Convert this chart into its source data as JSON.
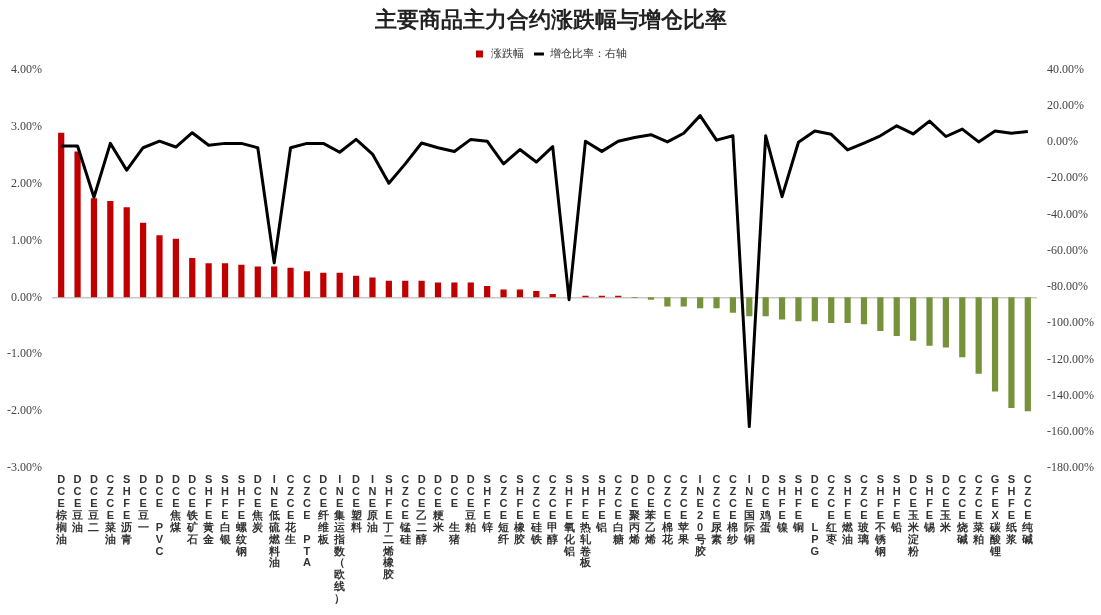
{
  "chart_data": {
    "type": "bar",
    "title": "主要商品主力合约涨跌幅与增仓比率",
    "categories": [
      "DCE棕榈油",
      "DCE豆油",
      "DCE豆二",
      "CZCE菜油",
      "SHFE沥青",
      "DCE豆一",
      "DCE PVC",
      "DCE焦煤",
      "DCE铁矿石",
      "SHFE黄金",
      "SHFE白银",
      "SHFE螺纹钢",
      "DCE焦炭",
      "INE低硫燃料油",
      "CZCE花生",
      "CZCE PTA",
      "DCE纤维板",
      "INE集运指数（欧线）",
      "DCE塑料",
      "INE原油",
      "SHFE丁二烯橡胶",
      "CZCE锰硅",
      "DCE乙二醇",
      "DCE粳米",
      "DCE 生猪",
      "DCE豆粕",
      "SHFE锌",
      "CZCE短纤",
      "SHFE橡胶",
      "CZCE硅铁",
      "CZCE甲醇",
      "SHFE氧化铝",
      "SHFE热轧卷板",
      "SHFE铝",
      "CZCE白糖",
      "DCE聚丙烯",
      "DCE苯乙烯",
      "CZCE棉花",
      "CZCE苹果",
      "INE20号胶",
      "CZCE尿素",
      "CZCE棉纱",
      "INE国际铜",
      "DCE鸡蛋",
      "SHFE镍",
      "SHFE铜",
      "DCE LPG",
      "CZCE红枣",
      "SHFE燃油",
      "CZCE玻璃",
      "SHFE不锈钢",
      "SHFE铅",
      "DCE玉米淀粉",
      "SHFE锡",
      "DCE玉米",
      "CZCE烧碱",
      "CZCE菜粕",
      "GFEX碳酸锂",
      "SHFE纸浆",
      "CZCE纯碱"
    ],
    "series": [
      {
        "name": "涨跌幅",
        "colors": [
          "#c00000",
          "#c00000",
          "#c00000",
          "#c00000",
          "#c00000",
          "#c00000",
          "#c00000",
          "#c00000",
          "#c00000",
          "#c00000",
          "#c00000",
          "#c00000",
          "#c00000",
          "#c00000",
          "#c00000",
          "#c00000",
          "#c00000",
          "#c00000",
          "#c00000",
          "#c00000",
          "#c00000",
          "#c00000",
          "#c00000",
          "#c00000",
          "#c00000",
          "#c00000",
          "#c00000",
          "#c00000",
          "#c00000",
          "#c00000",
          "#c00000",
          "#c00000",
          "#c00000",
          "#c00000",
          "#c00000",
          "#76933c",
          "#76933c",
          "#76933c",
          "#76933c",
          "#76933c",
          "#76933c",
          "#76933c",
          "#76933c",
          "#76933c",
          "#76933c",
          "#76933c",
          "#76933c",
          "#76933c",
          "#76933c",
          "#76933c",
          "#76933c",
          "#76933c",
          "#76933c",
          "#76933c",
          "#76933c",
          "#76933c",
          "#76933c",
          "#76933c",
          "#76933c",
          "#76933c"
        ],
        "values": [
          2.89,
          2.56,
          1.74,
          1.69,
          1.58,
          1.31,
          1.09,
          1.03,
          0.69,
          0.6,
          0.6,
          0.57,
          0.54,
          0.54,
          0.52,
          0.46,
          0.43,
          0.43,
          0.38,
          0.35,
          0.29,
          0.29,
          0.29,
          0.26,
          0.26,
          0.26,
          0.2,
          0.14,
          0.14,
          0.11,
          0.06,
          null,
          0.03,
          0.03,
          0.03,
          -0.01,
          -0.04,
          -0.16,
          -0.16,
          -0.19,
          -0.19,
          -0.27,
          -0.33,
          -0.33,
          -0.39,
          -0.42,
          -0.42,
          -0.45,
          -0.45,
          -0.47,
          -0.59,
          -0.68,
          -0.76,
          -0.85,
          -0.88,
          -1.05,
          -1.34,
          -1.65,
          -1.94,
          -2.0
        ]
      },
      {
        "name": "增仓比率：右轴",
        "type": "line",
        "axis": "y2",
        "color": "#000000",
        "values": [
          -2.2,
          -2.2,
          -30.5,
          -0.8,
          -15.6,
          -3.2,
          0.4,
          -2.8,
          5.1,
          -1.8,
          -0.8,
          -0.8,
          -3.2,
          -66.7,
          -3.2,
          -0.8,
          -0.8,
          -5.7,
          1.4,
          -6.7,
          -22.8,
          -12.1,
          -0.6,
          -3.2,
          -5.3,
          1.4,
          0.4,
          -12.1,
          -4.2,
          -11.1,
          -2.6,
          -87,
          0.4,
          -5.2,
          0.4,
          2.4,
          4.0,
          0,
          4.8,
          14.5,
          1.0,
          3.4,
          -157,
          3.4,
          -30.2,
          -0.2,
          6.0,
          4.2,
          -4.4,
          -0.6,
          3.4,
          8.9,
          4.4,
          11.5,
          3.0,
          7.1,
          0,
          6.0,
          4.8,
          5.8
        ]
      }
    ],
    "ylim": [
      -3,
      4
    ],
    "yticks": [
      {
        "value": -3,
        "label": "-3.00%"
      },
      {
        "value": -2,
        "label": "-2.00%"
      },
      {
        "value": -1,
        "label": "-1.00%"
      },
      {
        "value": 0,
        "label": "0.00%"
      },
      {
        "value": 1,
        "label": "1.00%"
      },
      {
        "value": 2,
        "label": "2.00%"
      },
      {
        "value": 3,
        "label": "3.00%"
      },
      {
        "value": 4,
        "label": "4.00%"
      }
    ],
    "y2lim": [
      -180,
      40
    ],
    "y2ticks": [
      {
        "value": -180,
        "label": "-180.00%"
      },
      {
        "value": -160,
        "label": "-160.00%"
      },
      {
        "value": -140,
        "label": "-140.00%"
      },
      {
        "value": -120,
        "label": "-120.00%"
      },
      {
        "value": -100,
        "label": "-100.00%"
      },
      {
        "value": -80,
        "label": "-80.00%"
      },
      {
        "value": -60,
        "label": "-60.00%"
      },
      {
        "value": -40,
        "label": "-40.00%"
      },
      {
        "value": -20,
        "label": "-20.00%"
      },
      {
        "value": 0,
        "label": "0.00%"
      },
      {
        "value": 20,
        "label": "20.00%"
      },
      {
        "value": 40,
        "label": "40.00%"
      }
    ],
    "legend": "top"
  }
}
